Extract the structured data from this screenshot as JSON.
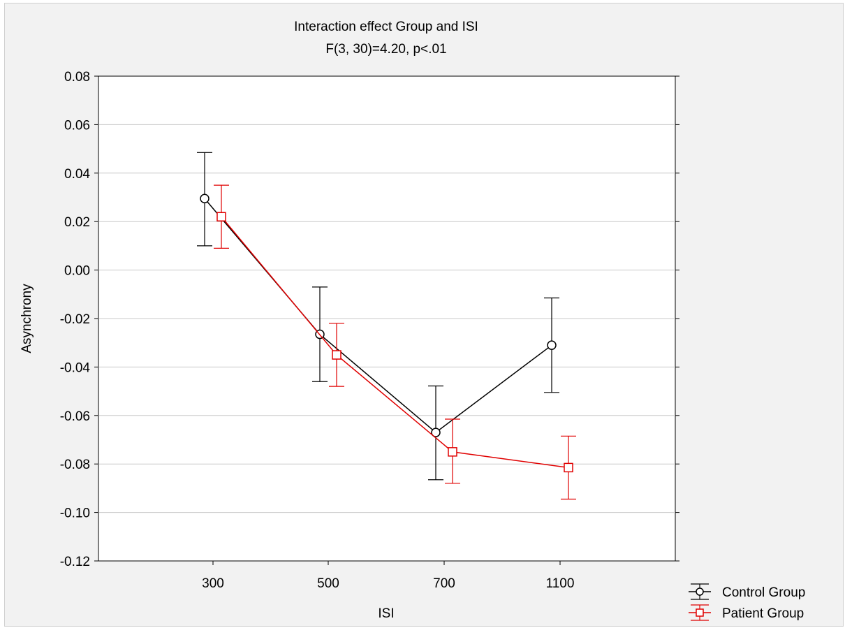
{
  "chart_data": {
    "type": "line",
    "title": "Interaction effect Group and ISI",
    "subtitle": "F(3, 30)=4.20, p<.01",
    "xlabel": "ISI",
    "ylabel": "Asynchrony",
    "categories": [
      "300",
      "500",
      "700",
      "1100"
    ],
    "ylim": [
      -0.12,
      0.08
    ],
    "yticks": [
      "0.08",
      "0.06",
      "0.04",
      "0.02",
      "0.00",
      "-0.02",
      "-0.04",
      "-0.06",
      "-0.08",
      "-0.10",
      "-0.12"
    ],
    "grid": true,
    "legend_position": "bottom-right",
    "series": [
      {
        "name": "Control Group",
        "color": "#000000",
        "marker": "circle",
        "values": [
          0.0295,
          -0.0265,
          -0.067,
          -0.031
        ],
        "err_low": [
          0.01,
          -0.046,
          -0.0865,
          -0.0505
        ],
        "err_high": [
          0.0485,
          -0.007,
          -0.0478,
          -0.0115
        ]
      },
      {
        "name": "Patient Group",
        "color": "#e00000",
        "marker": "square",
        "values": [
          0.022,
          -0.035,
          -0.075,
          -0.0815
        ],
        "err_low": [
          0.009,
          -0.048,
          -0.088,
          -0.0945
        ],
        "err_high": [
          0.035,
          -0.022,
          -0.0615,
          -0.0685
        ]
      }
    ]
  }
}
